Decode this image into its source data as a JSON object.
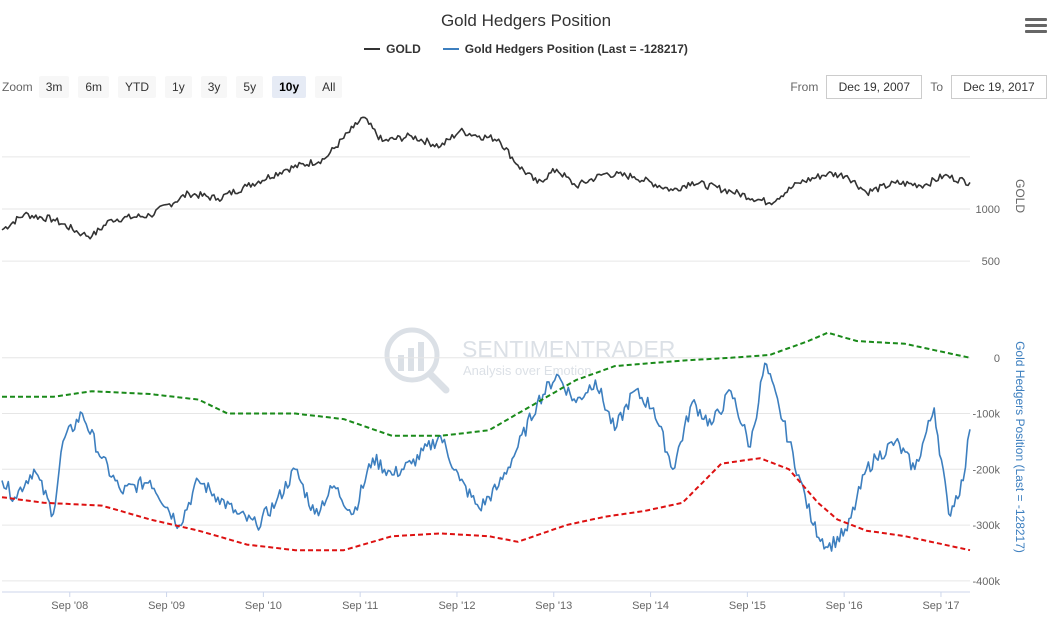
{
  "header": {
    "title": "Gold Hedgers Position",
    "menu_icon": "hamburger-menu-icon"
  },
  "legend": [
    {
      "name": "GOLD",
      "color": "#333333"
    },
    {
      "name": "Gold Hedgers Position (Last = -128217)",
      "color": "#3d7fbf"
    }
  ],
  "zoom": {
    "label": "Zoom",
    "buttons": [
      "3m",
      "6m",
      "YTD",
      "1y",
      "3y",
      "5y",
      "10y",
      "All"
    ],
    "active": "10y"
  },
  "range": {
    "from_label": "From",
    "from_value": "Dec 19, 2007",
    "to_label": "To",
    "to_value": "Dec 19, 2017"
  },
  "watermark": {
    "name": "SENTIMENTRADER",
    "tagline": "Analysis over Emotion"
  },
  "chart_data": {
    "type": "line",
    "x_ticks": [
      "Sep '08",
      "Sep '09",
      "Sep '10",
      "Sep '11",
      "Sep '12",
      "Sep '13",
      "Sep '14",
      "Sep '15",
      "Sep '16",
      "Sep '17"
    ],
    "x_range": [
      2007.97,
      2017.97
    ],
    "panels": [
      {
        "name": "GOLD",
        "axis_title": "GOLD",
        "y_ticks": [
          1000,
          500
        ],
        "ylim": [
          300,
          1950
        ],
        "series": [
          {
            "name": "GOLD",
            "color": "#333333",
            "points": [
              [
                2007.97,
                800
              ],
              [
                2008.2,
                950
              ],
              [
                2008.5,
                900
              ],
              [
                2008.8,
                760
              ],
              [
                2008.9,
                740
              ],
              [
                2009.1,
                900
              ],
              [
                2009.5,
                940
              ],
              [
                2009.9,
                1150
              ],
              [
                2010.2,
                1100
              ],
              [
                2010.5,
                1220
              ],
              [
                2010.9,
                1380
              ],
              [
                2011.3,
                1480
              ],
              [
                2011.6,
                1780
              ],
              [
                2011.7,
                1880
              ],
              [
                2011.9,
                1650
              ],
              [
                2012.2,
                1700
              ],
              [
                2012.5,
                1600
              ],
              [
                2012.7,
                1750
              ],
              [
                2012.9,
                1700
              ],
              [
                2013.1,
                1670
              ],
              [
                2013.3,
                1420
              ],
              [
                2013.5,
                1250
              ],
              [
                2013.7,
                1380
              ],
              [
                2013.9,
                1220
              ],
              [
                2014.2,
                1340
              ],
              [
                2014.5,
                1310
              ],
              [
                2014.9,
                1180
              ],
              [
                2015.1,
                1260
              ],
              [
                2015.5,
                1170
              ],
              [
                2015.9,
                1060
              ],
              [
                2016.2,
                1250
              ],
              [
                2016.5,
                1340
              ],
              [
                2016.7,
                1320
              ],
              [
                2016.9,
                1160
              ],
              [
                2017.2,
                1250
              ],
              [
                2017.5,
                1230
              ],
              [
                2017.7,
                1320
              ],
              [
                2017.97,
                1255
              ]
            ]
          }
        ]
      },
      {
        "name": "Gold Hedgers Position",
        "axis_title": "Gold Hedgers Position (Last = -128217)",
        "y_ticks": [
          0,
          -100000,
          -200000,
          -300000,
          -400000
        ],
        "y_tick_labels": [
          "0",
          "-100k",
          "-200k",
          "-300k",
          "-400k"
        ],
        "ylim": [
          -420000,
          100000
        ],
        "series": [
          {
            "name": "Gold Hedgers Position",
            "color": "#3d7fbf",
            "points": [
              [
                2007.97,
                -220000
              ],
              [
                2008.1,
                -250000
              ],
              [
                2008.3,
                -200000
              ],
              [
                2008.5,
                -280000
              ],
              [
                2008.6,
                -150000
              ],
              [
                2008.8,
                -100000
              ],
              [
                2009.0,
                -180000
              ],
              [
                2009.2,
                -240000
              ],
              [
                2009.5,
                -220000
              ],
              [
                2009.8,
                -300000
              ],
              [
                2010.0,
                -220000
              ],
              [
                2010.2,
                -250000
              ],
              [
                2010.4,
                -280000
              ],
              [
                2010.6,
                -300000
              ],
              [
                2010.8,
                -260000
              ],
              [
                2011.0,
                -200000
              ],
              [
                2011.2,
                -280000
              ],
              [
                2011.4,
                -230000
              ],
              [
                2011.6,
                -280000
              ],
              [
                2011.8,
                -180000
              ],
              [
                2012.0,
                -210000
              ],
              [
                2012.2,
                -190000
              ],
              [
                2012.5,
                -140000
              ],
              [
                2012.7,
                -220000
              ],
              [
                2012.9,
                -270000
              ],
              [
                2013.1,
                -230000
              ],
              [
                2013.3,
                -160000
              ],
              [
                2013.5,
                -80000
              ],
              [
                2013.7,
                -30000
              ],
              [
                2013.9,
                -80000
              ],
              [
                2014.1,
                -40000
              ],
              [
                2014.3,
                -130000
              ],
              [
                2014.5,
                -60000
              ],
              [
                2014.7,
                -90000
              ],
              [
                2014.9,
                -200000
              ],
              [
                2015.1,
                -80000
              ],
              [
                2015.3,
                -120000
              ],
              [
                2015.5,
                -60000
              ],
              [
                2015.7,
                -160000
              ],
              [
                2015.85,
                -10000
              ],
              [
                2016.0,
                -90000
              ],
              [
                2016.2,
                -210000
              ],
              [
                2016.35,
                -300000
              ],
              [
                2016.5,
                -340000
              ],
              [
                2016.7,
                -310000
              ],
              [
                2016.9,
                -200000
              ],
              [
                2017.0,
                -180000
              ],
              [
                2017.2,
                -150000
              ],
              [
                2017.4,
                -200000
              ],
              [
                2017.6,
                -90000
              ],
              [
                2017.75,
                -280000
              ],
              [
                2017.9,
                -220000
              ],
              [
                2017.97,
                -128217
              ]
            ]
          },
          {
            "name": "Upper band",
            "color": "#1a8a1a",
            "dashed": true,
            "points": [
              [
                2007.97,
                -70000
              ],
              [
                2008.5,
                -70000
              ],
              [
                2008.9,
                -60000
              ],
              [
                2009.5,
                -65000
              ],
              [
                2010.0,
                -75000
              ],
              [
                2010.3,
                -100000
              ],
              [
                2011.0,
                -100000
              ],
              [
                2011.5,
                -110000
              ],
              [
                2012.0,
                -140000
              ],
              [
                2012.5,
                -140000
              ],
              [
                2013.0,
                -130000
              ],
              [
                2013.5,
                -80000
              ],
              [
                2013.9,
                -40000
              ],
              [
                2014.3,
                -15000
              ],
              [
                2015.0,
                -5000
              ],
              [
                2015.5,
                0
              ],
              [
                2015.9,
                5000
              ],
              [
                2016.3,
                30000
              ],
              [
                2016.5,
                45000
              ],
              [
                2016.8,
                30000
              ],
              [
                2017.3,
                25000
              ],
              [
                2017.97,
                0
              ]
            ]
          },
          {
            "name": "Lower band",
            "color": "#dd1111",
            "dashed": true,
            "points": [
              [
                2007.97,
                -250000
              ],
              [
                2008.4,
                -260000
              ],
              [
                2009.0,
                -265000
              ],
              [
                2009.5,
                -290000
              ],
              [
                2010.0,
                -310000
              ],
              [
                2010.5,
                -335000
              ],
              [
                2011.0,
                -345000
              ],
              [
                2011.5,
                -345000
              ],
              [
                2012.0,
                -320000
              ],
              [
                2012.5,
                -315000
              ],
              [
                2013.0,
                -320000
              ],
              [
                2013.3,
                -330000
              ],
              [
                2013.8,
                -300000
              ],
              [
                2014.2,
                -285000
              ],
              [
                2014.6,
                -275000
              ],
              [
                2015.0,
                -260000
              ],
              [
                2015.4,
                -190000
              ],
              [
                2015.8,
                -180000
              ],
              [
                2016.1,
                -200000
              ],
              [
                2016.4,
                -260000
              ],
              [
                2016.6,
                -290000
              ],
              [
                2016.9,
                -310000
              ],
              [
                2017.3,
                -320000
              ],
              [
                2017.97,
                -345000
              ]
            ]
          }
        ]
      }
    ]
  }
}
